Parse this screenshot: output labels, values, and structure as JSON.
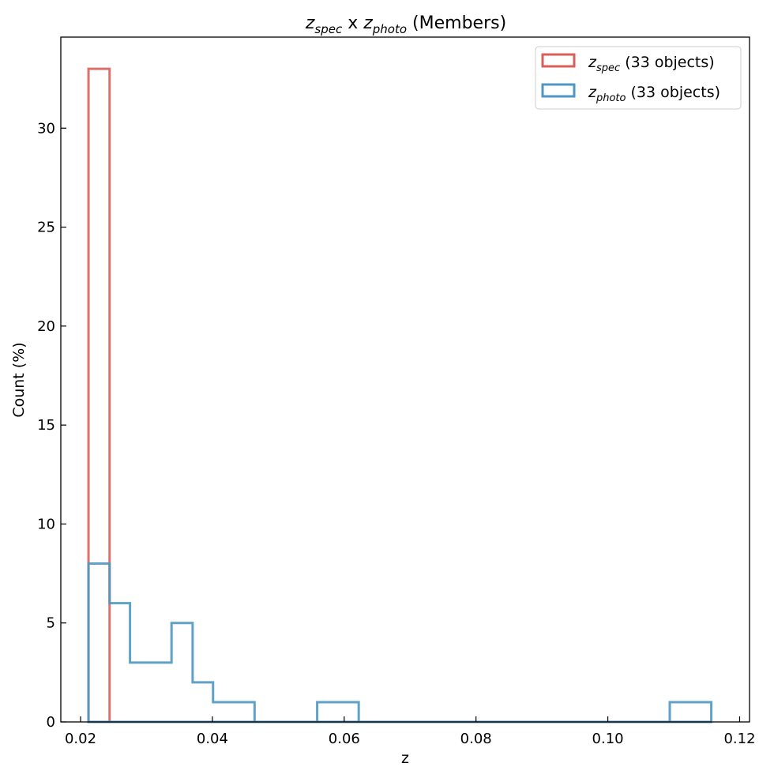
{
  "chart_data": {
    "type": "histogram",
    "title": {
      "spec_var": "z",
      "spec_sub": "spec",
      "joiner": " x ",
      "photo_var": "z",
      "photo_sub": "photo",
      "suffix": " (Members)"
    },
    "xlabel": "z",
    "ylabel": "Count (%)",
    "xlim": [
      0.017,
      0.1215
    ],
    "ylim": [
      0,
      34.6
    ],
    "xticks": [
      0.02,
      0.04,
      0.06,
      0.08,
      0.1,
      0.12
    ],
    "xtick_labels": [
      "0.02",
      "0.04",
      "0.06",
      "0.08",
      "0.10",
      "0.12"
    ],
    "yticks": [
      0,
      5,
      10,
      15,
      20,
      25,
      30
    ],
    "ytick_labels": [
      "0",
      "5",
      "10",
      "15",
      "20",
      "25",
      "30"
    ],
    "grid": false,
    "legend_position": "top-right",
    "bin_edges": [
      0.0212,
      0.0244,
      0.0275,
      0.0307,
      0.0338,
      0.037,
      0.0401,
      0.0433,
      0.0464,
      0.0496,
      0.0527,
      0.0559,
      0.059,
      0.0622,
      0.0653,
      0.0685,
      0.0716,
      0.0748,
      0.0779,
      0.0811,
      0.0842,
      0.0874,
      0.0905,
      0.0937,
      0.0968,
      0.1,
      0.1031,
      0.1063,
      0.1094,
      0.1126,
      0.1157
    ],
    "series": [
      {
        "var": "z",
        "sub": "spec",
        "suffix": " (33 objects)",
        "color": "#d9605a",
        "values": [
          33,
          0,
          0,
          0,
          0,
          0,
          0,
          0,
          0,
          0,
          0,
          0,
          0,
          0,
          0,
          0,
          0,
          0,
          0,
          0,
          0,
          0,
          0,
          0,
          0,
          0,
          0,
          0,
          0,
          0
        ]
      },
      {
        "var": "z",
        "sub": "photo",
        "suffix": " (33 objects)",
        "color": "#4f97c2",
        "values": [
          8,
          6,
          3,
          3,
          5,
          2,
          1,
          1,
          0,
          0,
          0,
          1,
          1,
          0,
          0,
          0,
          0,
          0,
          0,
          0,
          0,
          0,
          0,
          0,
          0,
          0,
          0,
          0,
          1,
          1
        ]
      }
    ]
  }
}
